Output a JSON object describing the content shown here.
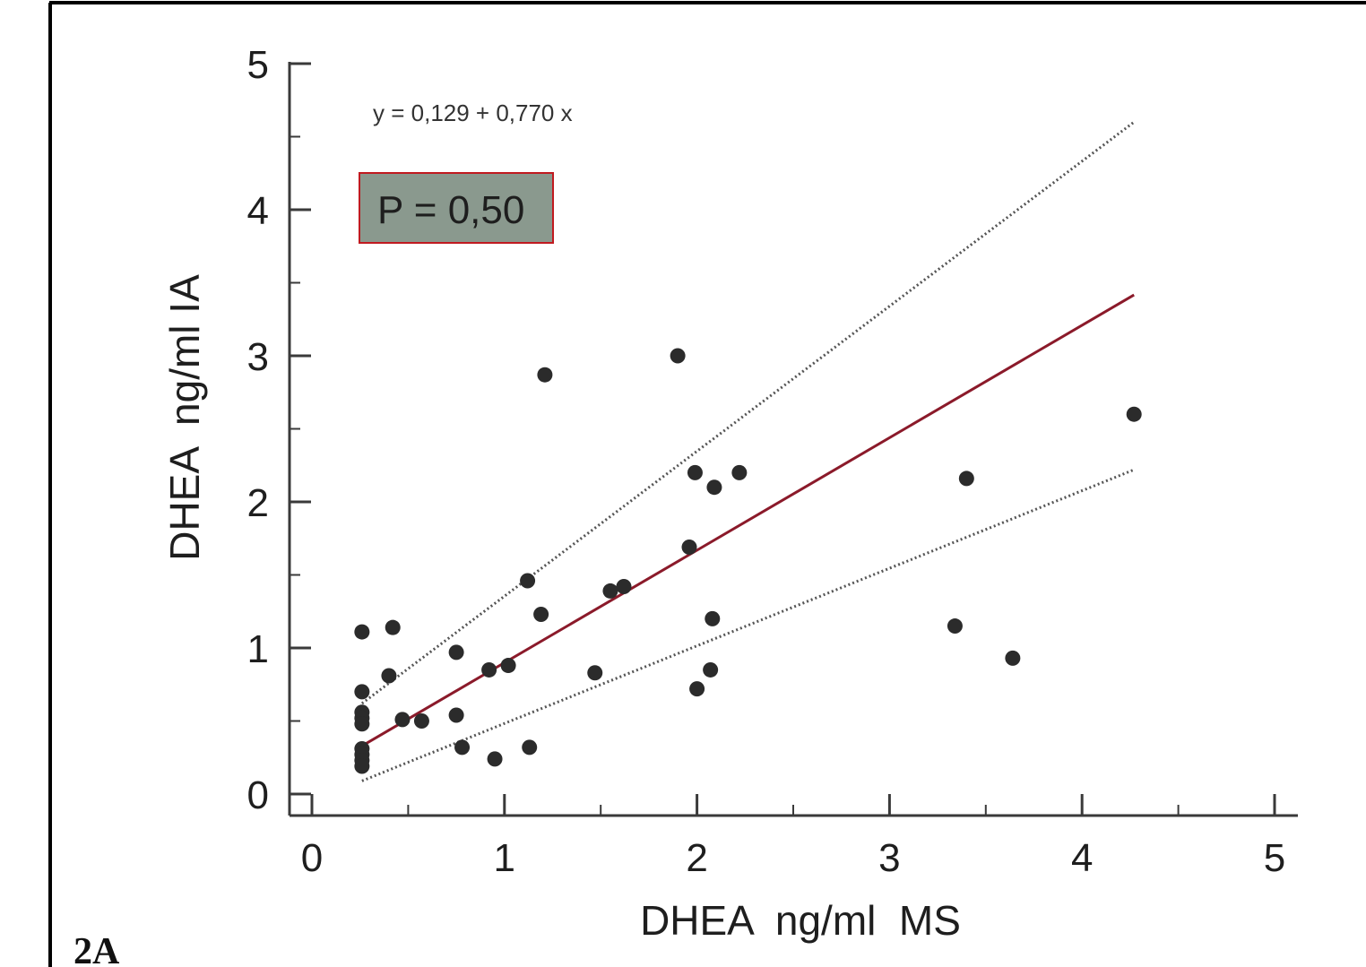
{
  "chart_data": {
    "type": "scatter",
    "panel_label": "2A",
    "xlabel": "DHEA  ng/ml  MS",
    "ylabel": "DHEA  ng/ml IA",
    "xlim": [
      0,
      5
    ],
    "ylim": [
      0,
      5
    ],
    "x_ticks": [
      "0",
      "1",
      "2",
      "3",
      "4",
      "5"
    ],
    "y_ticks": [
      "0",
      "1",
      "2",
      "3",
      "4",
      "5"
    ],
    "annotations": {
      "equation": "y = 0,129  +  0,770  x",
      "p_value": "P = 0,50"
    },
    "regression": {
      "intercept": 0.129,
      "slope": 0.77,
      "x_range": [
        0.26,
        4.27
      ]
    },
    "confidence_band": {
      "upper": [
        [
          0.26,
          0.62
        ],
        [
          4.27,
          4.6
        ]
      ],
      "lower": [
        [
          0.26,
          0.09
        ],
        [
          4.27,
          2.22
        ]
      ]
    },
    "points": [
      [
        0.26,
        1.11
      ],
      [
        0.26,
        0.7
      ],
      [
        0.26,
        0.56
      ],
      [
        0.26,
        0.52
      ],
      [
        0.26,
        0.48
      ],
      [
        0.26,
        0.31
      ],
      [
        0.26,
        0.27
      ],
      [
        0.26,
        0.23
      ],
      [
        0.26,
        0.19
      ],
      [
        0.4,
        0.81
      ],
      [
        0.42,
        1.14
      ],
      [
        0.47,
        0.51
      ],
      [
        0.57,
        0.5
      ],
      [
        0.75,
        0.97
      ],
      [
        0.75,
        0.54
      ],
      [
        0.78,
        0.32
      ],
      [
        0.92,
        0.85
      ],
      [
        0.95,
        0.24
      ],
      [
        1.02,
        0.88
      ],
      [
        1.12,
        1.46
      ],
      [
        1.13,
        0.32
      ],
      [
        1.19,
        1.23
      ],
      [
        1.21,
        2.87
      ],
      [
        1.47,
        0.83
      ],
      [
        1.55,
        1.39
      ],
      [
        1.62,
        1.42
      ],
      [
        1.9,
        3.0
      ],
      [
        1.96,
        1.69
      ],
      [
        1.99,
        2.2
      ],
      [
        2.0,
        0.72
      ],
      [
        2.07,
        0.85
      ],
      [
        2.08,
        1.2
      ],
      [
        2.09,
        2.1
      ],
      [
        2.22,
        2.2
      ],
      [
        3.34,
        1.15
      ],
      [
        3.4,
        2.16
      ],
      [
        3.64,
        0.93
      ],
      [
        4.27,
        2.6
      ]
    ],
    "colors": {
      "points": "#2b2b2b",
      "regression": "#8b1a2a",
      "band": "#555555",
      "axis": "#3a3a3a",
      "pbox_fill": "#8a998e",
      "pbox_border": "#c01a20",
      "frame": "#000000"
    }
  }
}
